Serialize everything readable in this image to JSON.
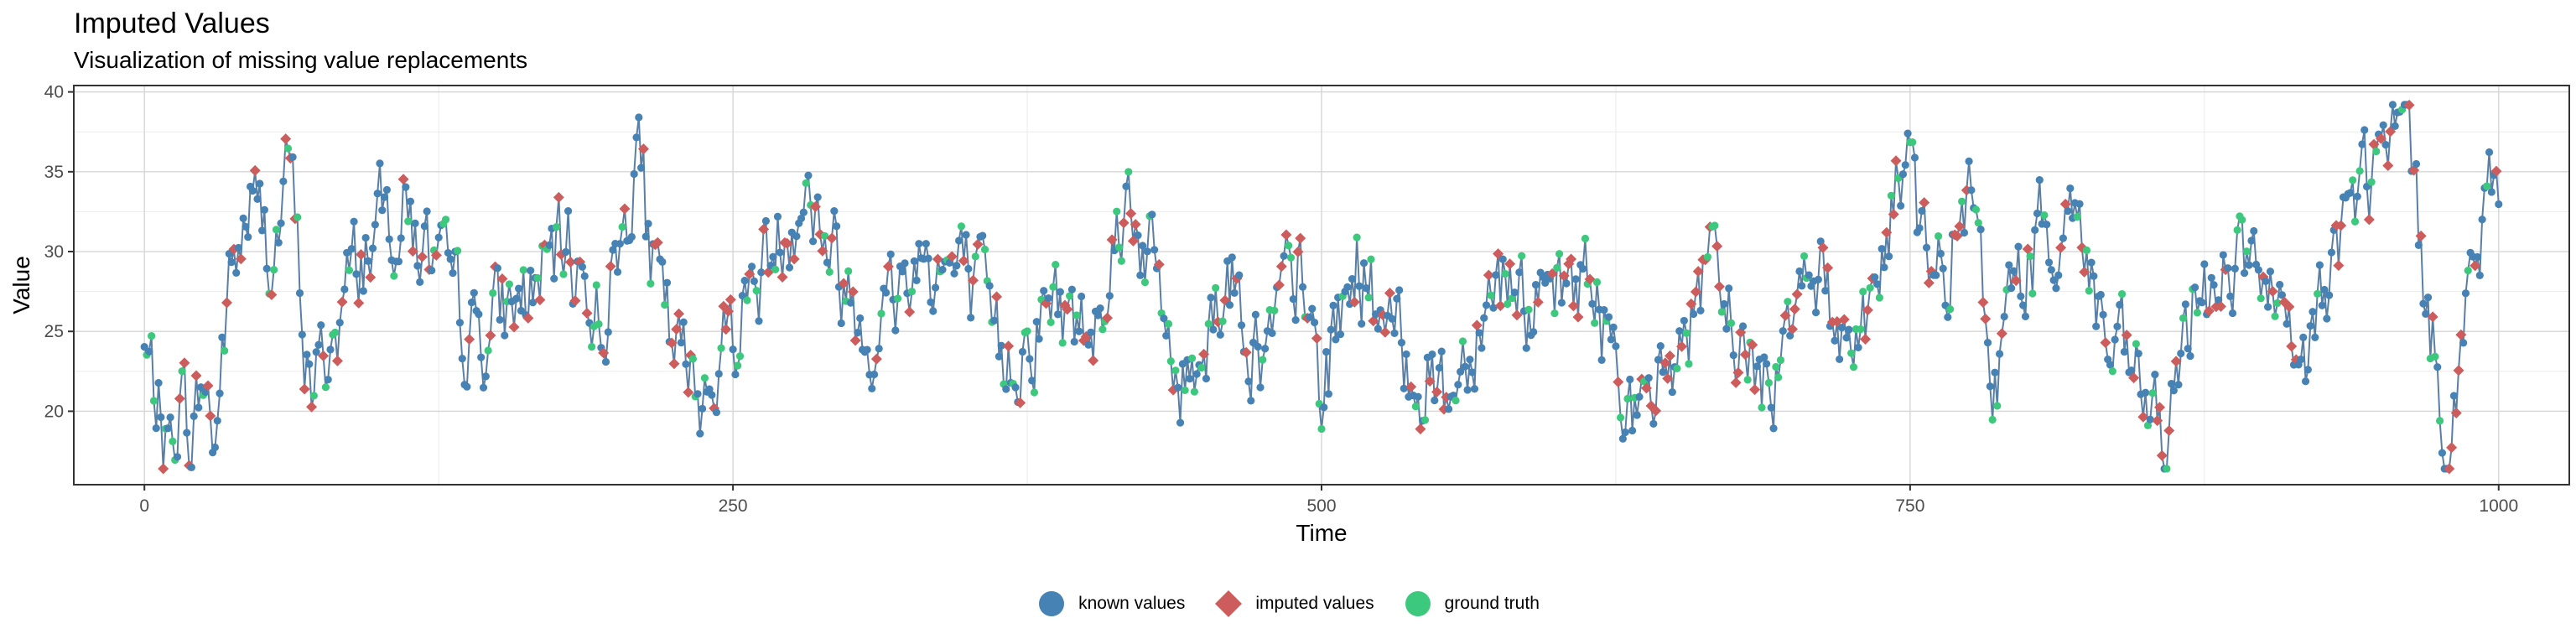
{
  "chart_data": {
    "type": "line",
    "title": "Imputed Values",
    "subtitle": "Visualization of missing value replacements",
    "xlabel": "Time",
    "ylabel": "Value",
    "xlim": [
      -30,
      1030
    ],
    "ylim": [
      15.4,
      40.4
    ],
    "x_ticks": [
      0,
      250,
      500,
      750,
      1000
    ],
    "y_ticks": [
      20,
      25,
      30,
      35,
      40
    ],
    "grid": true,
    "legend_position": "bottom",
    "n_points": 1000,
    "series": [
      {
        "name": "known values",
        "color": "#4682B4",
        "marker": "circle"
      },
      {
        "name": "imputed values",
        "color": "#CD5C5C",
        "marker": "diamond"
      },
      {
        "name": "ground truth",
        "color": "#3CC97E",
        "marker": "circle"
      }
    ],
    "line_color": "#5A7FA5",
    "anchor_points": [
      {
        "x": 0,
        "y": 23.5
      },
      {
        "x": 5,
        "y": 21.0
      },
      {
        "x": 10,
        "y": 17.0
      },
      {
        "x": 15,
        "y": 21.5
      },
      {
        "x": 20,
        "y": 18.5
      },
      {
        "x": 25,
        "y": 22.0
      },
      {
        "x": 30,
        "y": 18.0
      },
      {
        "x": 35,
        "y": 27.0
      },
      {
        "x": 45,
        "y": 33.0
      },
      {
        "x": 55,
        "y": 30.0
      },
      {
        "x": 62,
        "y": 35.5
      },
      {
        "x": 68,
        "y": 24.0
      },
      {
        "x": 72,
        "y": 21.0
      },
      {
        "x": 85,
        "y": 27.0
      },
      {
        "x": 95,
        "y": 31.0
      },
      {
        "x": 110,
        "y": 33.0
      },
      {
        "x": 125,
        "y": 28.0
      },
      {
        "x": 140,
        "y": 24.5
      },
      {
        "x": 160,
        "y": 27.0
      },
      {
        "x": 180,
        "y": 30.0
      },
      {
        "x": 195,
        "y": 26.0
      },
      {
        "x": 205,
        "y": 32.0
      },
      {
        "x": 209,
        "y": 38.5
      },
      {
        "x": 215,
        "y": 29.0
      },
      {
        "x": 225,
        "y": 23.5
      },
      {
        "x": 235,
        "y": 21.0
      },
      {
        "x": 255,
        "y": 27.0
      },
      {
        "x": 270,
        "y": 31.0
      },
      {
        "x": 280,
        "y": 34.5
      },
      {
        "x": 295,
        "y": 29.0
      },
      {
        "x": 310,
        "y": 25.0
      },
      {
        "x": 330,
        "y": 30.0
      },
      {
        "x": 350,
        "y": 28.0
      },
      {
        "x": 365,
        "y": 23.0
      },
      {
        "x": 385,
        "y": 27.0
      },
      {
        "x": 400,
        "y": 25.0
      },
      {
        "x": 418,
        "y": 34.0
      },
      {
        "x": 430,
        "y": 28.0
      },
      {
        "x": 440,
        "y": 21.0
      },
      {
        "x": 460,
        "y": 29.0
      },
      {
        "x": 475,
        "y": 23.0
      },
      {
        "x": 490,
        "y": 29.0
      },
      {
        "x": 500,
        "y": 21.0
      },
      {
        "x": 515,
        "y": 30.0
      },
      {
        "x": 530,
        "y": 24.0
      },
      {
        "x": 555,
        "y": 21.0
      },
      {
        "x": 570,
        "y": 28.0
      },
      {
        "x": 580,
        "y": 29.0
      },
      {
        "x": 595,
        "y": 25.0
      },
      {
        "x": 610,
        "y": 29.0
      },
      {
        "x": 630,
        "y": 22.0
      },
      {
        "x": 635,
        "y": 18.0
      },
      {
        "x": 650,
        "y": 24.0
      },
      {
        "x": 665,
        "y": 28.0
      },
      {
        "x": 680,
        "y": 24.0
      },
      {
        "x": 690,
        "y": 21.0
      },
      {
        "x": 705,
        "y": 31.0
      },
      {
        "x": 720,
        "y": 25.0
      },
      {
        "x": 735,
        "y": 27.0
      },
      {
        "x": 748,
        "y": 36.5
      },
      {
        "x": 760,
        "y": 27.0
      },
      {
        "x": 775,
        "y": 33.0
      },
      {
        "x": 785,
        "y": 22.0
      },
      {
        "x": 800,
        "y": 30.0
      },
      {
        "x": 820,
        "y": 33.0
      },
      {
        "x": 835,
        "y": 23.0
      },
      {
        "x": 850,
        "y": 21.0
      },
      {
        "x": 860,
        "y": 17.0
      },
      {
        "x": 870,
        "y": 27.0
      },
      {
        "x": 890,
        "y": 30.0
      },
      {
        "x": 905,
        "y": 26.0
      },
      {
        "x": 915,
        "y": 21.0
      },
      {
        "x": 930,
        "y": 30.0
      },
      {
        "x": 945,
        "y": 35.0
      },
      {
        "x": 962,
        "y": 37.5
      },
      {
        "x": 970,
        "y": 25.0
      },
      {
        "x": 980,
        "y": 19.0
      },
      {
        "x": 990,
        "y": 30.0
      },
      {
        "x": 1000,
        "y": 34.0
      }
    ]
  }
}
